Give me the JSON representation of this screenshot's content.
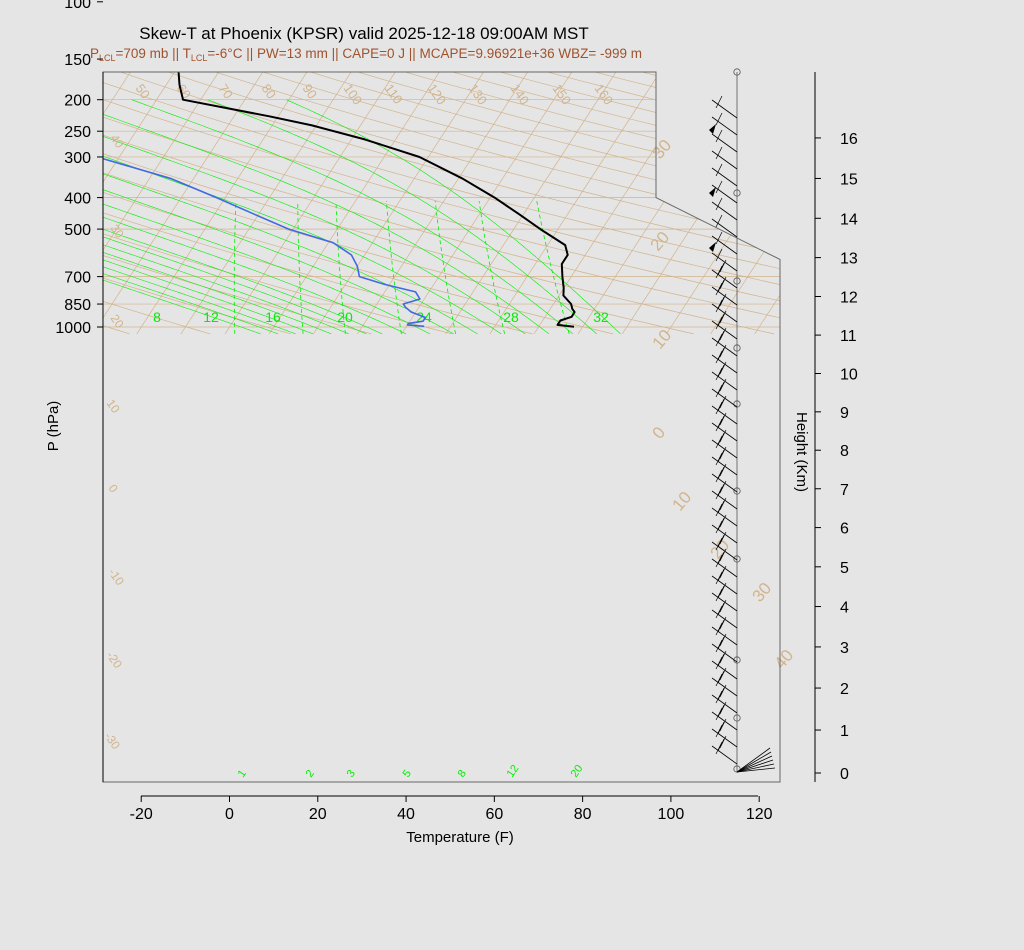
{
  "title": "Skew-T at Phoenix (KPSR) valid 2025-12-18 09:00AM MST",
  "subtitle": {
    "parts": [
      {
        "t": "P",
        "s": false
      },
      {
        "t": "LCL",
        "s": true
      },
      {
        "t": "=709 mb || T",
        "s": false
      },
      {
        "t": "LCL",
        "s": true
      },
      {
        "t": "=-6°C || PW=13 mm || CAPE=0 J || MCAPE=9.96921e+36 WBZ= -999 m",
        "s": false
      }
    ]
  },
  "colors": {
    "background": "#e5e5e5",
    "temperature": "#000000",
    "dewpoint": "#4169e1",
    "reference_lines": "#d2b48c",
    "mixing_ratio": "#00ee00",
    "subtitle": "#a0522d"
  },
  "chart_data": {
    "type": "line",
    "title": "Skew-T at Phoenix (KPSR) valid 2025-12-18 09:00AM MST",
    "xlabel": "Temperature (F)",
    "ylabel": "P (hPa)",
    "y2label": "Height (Km)",
    "x_scale": "skewed",
    "y_scale": "log",
    "xlim": [
      -28,
      125
    ],
    "ylim": [
      1050,
      100
    ],
    "x_ticks": [
      -20,
      0,
      20,
      40,
      60,
      80,
      100,
      120
    ],
    "y_ticks": [
      100,
      150,
      200,
      250,
      300,
      400,
      500,
      700,
      850,
      1000
    ],
    "height_ticks": [
      0,
      1,
      2,
      3,
      4,
      5,
      6,
      7,
      8,
      9,
      10,
      11,
      12,
      13,
      14,
      15,
      16
    ],
    "grid": true,
    "isotherm_labels_F": [
      -30,
      -20,
      -10,
      0,
      10,
      20,
      30,
      40,
      50,
      60,
      70,
      80,
      90,
      100,
      110,
      120,
      130,
      140,
      150,
      160
    ],
    "adiabat_labels": [
      "0",
      "10",
      "20",
      "30",
      "40",
      "50",
      "60",
      "70",
      "80",
      "90",
      "100",
      "110",
      "120",
      "130",
      "140",
      "150",
      "160"
    ],
    "theta_e_labels": [
      "30",
      "20",
      "10",
      "0",
      "10",
      "20",
      "30",
      "40"
    ],
    "mixing_ratio_labels": [
      "1",
      "2",
      "3",
      "5",
      "8",
      "12",
      "20"
    ],
    "wetbulb_labels": [
      "8",
      "12",
      "16",
      "20",
      "24",
      "28",
      "32"
    ],
    "series": [
      {
        "name": "",
        "role": "temperature",
        "points": [
          [
            998,
            78
          ],
          [
            985,
            74
          ],
          [
            955,
            74
          ],
          [
            930,
            76
          ],
          [
            900,
            76
          ],
          [
            880,
            75
          ],
          [
            850,
            74
          ],
          [
            800,
            71
          ],
          [
            760,
            70
          ],
          [
            700,
            68
          ],
          [
            640,
            66
          ],
          [
            600,
            66
          ],
          [
            560,
            64
          ],
          [
            500,
            56
          ],
          [
            450,
            49
          ],
          [
            400,
            41
          ],
          [
            350,
            31
          ],
          [
            300,
            18
          ],
          [
            265,
            3
          ],
          [
            240,
            -11
          ],
          [
            225,
            -22
          ],
          [
            200,
            -44
          ],
          [
            180,
            -47
          ],
          [
            165,
            -49
          ],
          [
            150,
            -51
          ],
          [
            130,
            -54
          ],
          [
            100,
            -65
          ]
        ]
      },
      {
        "name": "",
        "role": "dewpoint",
        "points": [
          [
            995,
            44
          ],
          [
            985,
            40
          ],
          [
            975,
            40
          ],
          [
            960,
            43
          ],
          [
            935,
            43
          ],
          [
            900,
            39
          ],
          [
            870,
            37
          ],
          [
            850,
            36
          ],
          [
            820,
            39
          ],
          [
            780,
            37
          ],
          [
            740,
            29
          ],
          [
            700,
            22
          ],
          [
            650,
            20
          ],
          [
            600,
            17
          ],
          [
            550,
            11
          ],
          [
            500,
            -1
          ],
          [
            450,
            -11
          ],
          [
            400,
            -22
          ],
          [
            350,
            -35
          ],
          [
            300,
            -55
          ],
          [
            265,
            -71
          ],
          [
            240,
            -71
          ],
          [
            210,
            -74
          ],
          [
            195,
            -80
          ],
          [
            150,
            -105
          ],
          [
            130,
            -125
          ],
          [
            100,
            -140
          ]
        ]
      }
    ]
  }
}
